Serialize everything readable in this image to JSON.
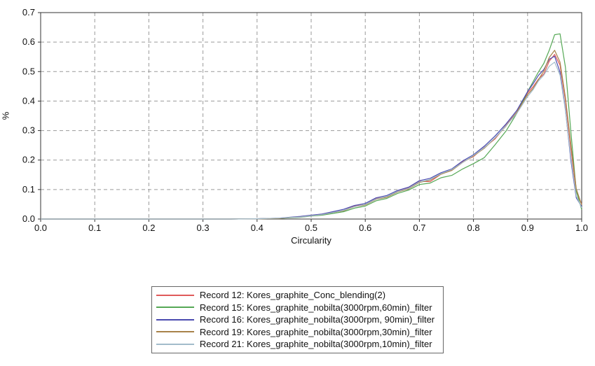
{
  "chart_data": {
    "type": "line",
    "title": "",
    "xlabel": "Circularity",
    "ylabel": "%",
    "xlim": [
      0.0,
      1.0
    ],
    "ylim": [
      0.0,
      0.7
    ],
    "grid": "dashed",
    "grid_color": "#9a9a9a",
    "axis_color": "#333333",
    "legend_position": "bottom",
    "x_ticks": [
      "0.0",
      "0.1",
      "0.2",
      "0.3",
      "0.4",
      "0.5",
      "0.6",
      "0.7",
      "0.8",
      "0.9",
      "1.0"
    ],
    "y_ticks": [
      "0.0",
      "0.1",
      "0.2",
      "0.3",
      "0.4",
      "0.5",
      "0.6",
      "0.7"
    ],
    "x": [
      0,
      0.05,
      0.1,
      0.15,
      0.2,
      0.25,
      0.3,
      0.35,
      0.4,
      0.44,
      0.46,
      0.48,
      0.5,
      0.52,
      0.54,
      0.56,
      0.58,
      0.6,
      0.62,
      0.64,
      0.66,
      0.68,
      0.7,
      0.72,
      0.74,
      0.76,
      0.78,
      0.8,
      0.82,
      0.84,
      0.86,
      0.88,
      0.9,
      0.91,
      0.92,
      0.93,
      0.94,
      0.95,
      0.96,
      0.97,
      0.98,
      0.99,
      1.0
    ],
    "series": [
      {
        "name": "Record 12: Kores_graphite_Conc_blending(2)",
        "color": "#e05a5a",
        "values": [
          0,
          0,
          0,
          0,
          0,
          0,
          0,
          0,
          0.001,
          0.002,
          0.005,
          0.007,
          0.012,
          0.014,
          0.023,
          0.029,
          0.045,
          0.049,
          0.07,
          0.075,
          0.095,
          0.105,
          0.128,
          0.127,
          0.152,
          0.167,
          0.194,
          0.212,
          0.243,
          0.272,
          0.318,
          0.362,
          0.428,
          0.448,
          0.474,
          0.492,
          0.535,
          0.558,
          0.522,
          0.402,
          0.238,
          0.092,
          0.051
        ]
      },
      {
        "name": "Record 15: Kores_graphite_nobilta(3000rpm,60min)_filter",
        "color": "#55a855",
        "values": [
          0,
          0,
          0,
          0,
          0,
          0,
          0,
          0,
          0.001,
          0.002,
          0.004,
          0.006,
          0.01,
          0.013,
          0.019,
          0.025,
          0.037,
          0.044,
          0.062,
          0.07,
          0.087,
          0.098,
          0.117,
          0.122,
          0.14,
          0.148,
          0.17,
          0.188,
          0.208,
          0.252,
          0.298,
          0.358,
          0.432,
          0.465,
          0.498,
          0.528,
          0.572,
          0.625,
          0.628,
          0.515,
          0.295,
          0.095,
          0.032
        ]
      },
      {
        "name": "Record 16: Kores_graphite_nobilta(3000rpm, 90min)_filter",
        "color": "#4a4ab0",
        "values": [
          0,
          0,
          0,
          0,
          0,
          0,
          0,
          0,
          0.001,
          0.003,
          0.006,
          0.009,
          0.013,
          0.017,
          0.025,
          0.033,
          0.046,
          0.053,
          0.072,
          0.08,
          0.097,
          0.108,
          0.13,
          0.138,
          0.157,
          0.17,
          0.197,
          0.218,
          0.247,
          0.282,
          0.322,
          0.368,
          0.432,
          0.458,
          0.487,
          0.507,
          0.542,
          0.552,
          0.498,
          0.372,
          0.198,
          0.072,
          0.042
        ]
      },
      {
        "name": "Record 19: Kores_graphite_nobilta(3000rpm,30min)_filter",
        "color": "#a8824a",
        "values": [
          0,
          0,
          0,
          0,
          0,
          0,
          0,
          0,
          0.001,
          0.002,
          0.005,
          0.007,
          0.011,
          0.015,
          0.022,
          0.028,
          0.042,
          0.048,
          0.067,
          0.074,
          0.092,
          0.102,
          0.124,
          0.132,
          0.152,
          0.165,
          0.192,
          0.214,
          0.24,
          0.275,
          0.315,
          0.362,
          0.422,
          0.442,
          0.472,
          0.502,
          0.548,
          0.572,
          0.532,
          0.412,
          0.252,
          0.102,
          0.048
        ]
      },
      {
        "name": "Record 21: Kores_graphite_nobilta(3000rpm,10min)_filter",
        "color": "#a2bccb",
        "values": [
          0,
          0,
          0,
          0,
          0,
          0,
          0,
          0,
          0.001,
          0.003,
          0.005,
          0.007,
          0.011,
          0.015,
          0.022,
          0.03,
          0.042,
          0.05,
          0.068,
          0.077,
          0.094,
          0.104,
          0.126,
          0.134,
          0.154,
          0.168,
          0.192,
          0.216,
          0.242,
          0.276,
          0.316,
          0.358,
          0.415,
          0.438,
          0.468,
          0.488,
          0.518,
          0.532,
          0.488,
          0.368,
          0.208,
          0.078,
          0.038
        ]
      }
    ]
  }
}
